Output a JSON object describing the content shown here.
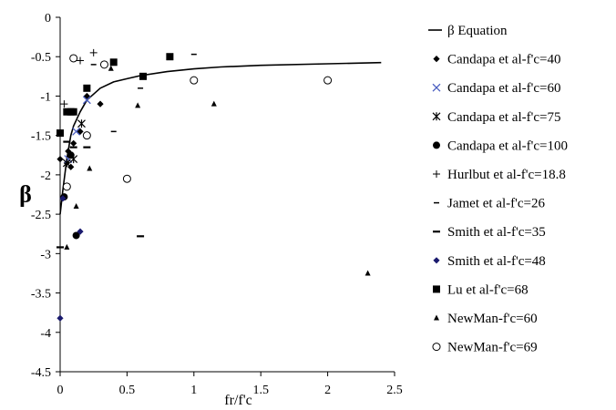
{
  "chart_data": {
    "type": "scatter",
    "title": "",
    "xlabel": "fr/f'c",
    "ylabel": "β",
    "xlim": [
      0,
      2.5
    ],
    "ylim": [
      -4.5,
      0
    ],
    "x_ticks": [
      "0",
      "0.5",
      "1",
      "1.5",
      "2",
      "2.5"
    ],
    "y_ticks": [
      "0",
      "-0.5",
      "-1",
      "-1.5",
      "-2",
      "-2.5",
      "-3",
      "-3.5",
      "-4",
      "-4.5"
    ],
    "grid": false,
    "legend_position": "right",
    "series": [
      {
        "name": "β Equation",
        "marker": "line",
        "points": [
          [
            0.0,
            -2.5
          ],
          [
            0.02,
            -2.2
          ],
          [
            0.05,
            -1.8
          ],
          [
            0.08,
            -1.5
          ],
          [
            0.1,
            -1.38
          ],
          [
            0.15,
            -1.2
          ],
          [
            0.2,
            -1.05
          ],
          [
            0.3,
            -0.9
          ],
          [
            0.4,
            -0.82
          ],
          [
            0.5,
            -0.78
          ],
          [
            0.6,
            -0.74
          ],
          [
            0.8,
            -0.69
          ],
          [
            1.0,
            -0.655
          ],
          [
            1.2,
            -0.63
          ],
          [
            1.5,
            -0.61
          ],
          [
            2.0,
            -0.59
          ],
          [
            2.4,
            -0.575
          ]
        ]
      },
      {
        "name": "Candapa et al-f'c=40",
        "marker": "diamond",
        "points": [
          [
            0.0,
            -1.8
          ],
          [
            0.05,
            -1.85
          ],
          [
            0.06,
            -1.7
          ],
          [
            0.08,
            -1.9
          ],
          [
            0.1,
            -1.6
          ],
          [
            0.15,
            -1.45
          ],
          [
            0.2,
            -1.0
          ],
          [
            0.3,
            -1.1
          ]
        ]
      },
      {
        "name": "Candapa et al-f'c=60",
        "marker": "x",
        "points": [
          [
            0.06,
            -1.8
          ],
          [
            0.12,
            -1.45
          ],
          [
            0.2,
            -1.05
          ]
        ]
      },
      {
        "name": "Candapa et al-f'c=75",
        "marker": "star",
        "points": [
          [
            0.05,
            -1.85
          ],
          [
            0.1,
            -1.8
          ],
          [
            0.16,
            -1.35
          ]
        ]
      },
      {
        "name": "Candapa et al-f'c=100",
        "marker": "circle-filled",
        "points": [
          [
            0.03,
            -2.28
          ],
          [
            0.08,
            -1.75
          ],
          [
            0.12,
            -2.77
          ]
        ]
      },
      {
        "name": "Hurlbut et al-f'c=18.8",
        "marker": "plus",
        "points": [
          [
            0.03,
            -1.1
          ],
          [
            0.15,
            -0.55
          ],
          [
            0.25,
            -0.45
          ]
        ]
      },
      {
        "name": "Jamet et al-f'c=26",
        "marker": "dash",
        "points": [
          [
            0.25,
            -0.6
          ],
          [
            0.4,
            -1.45
          ],
          [
            0.6,
            -0.9
          ],
          [
            1.0,
            -0.47
          ]
        ]
      },
      {
        "name": "Smith et al-f'c=35",
        "marker": "dash-bold",
        "points": [
          [
            0.0,
            -2.92
          ],
          [
            0.05,
            -1.58
          ],
          [
            0.1,
            -1.65
          ],
          [
            0.2,
            -1.65
          ],
          [
            0.6,
            -2.78
          ]
        ]
      },
      {
        "name": "Smith et al-f'c=48",
        "marker": "diamond-navy",
        "points": [
          [
            0.0,
            -3.82
          ],
          [
            0.02,
            -2.3
          ],
          [
            0.15,
            -2.72
          ]
        ]
      },
      {
        "name": "Lu  et al-f'c=68",
        "marker": "square",
        "points": [
          [
            0.0,
            -1.47
          ],
          [
            0.05,
            -1.2
          ],
          [
            0.08,
            -1.2
          ],
          [
            0.1,
            -1.2
          ],
          [
            0.2,
            -0.9
          ],
          [
            0.4,
            -0.57
          ],
          [
            0.62,
            -0.75
          ],
          [
            0.82,
            -0.5
          ]
        ]
      },
      {
        "name": "NewMan-f'c=60",
        "marker": "triangle",
        "points": [
          [
            0.05,
            -2.92
          ],
          [
            0.12,
            -2.4
          ],
          [
            0.22,
            -1.92
          ],
          [
            0.38,
            -0.65
          ],
          [
            0.58,
            -1.12
          ],
          [
            1.15,
            -1.1
          ],
          [
            2.3,
            -3.25
          ]
        ]
      },
      {
        "name": "NewMan-f'c=69",
        "marker": "circle-open",
        "points": [
          [
            0.05,
            -2.15
          ],
          [
            0.1,
            -0.52
          ],
          [
            0.2,
            -1.5
          ],
          [
            0.33,
            -0.6
          ],
          [
            0.5,
            -2.05
          ],
          [
            1.0,
            -0.8
          ],
          [
            2.0,
            -0.8
          ]
        ]
      }
    ]
  }
}
